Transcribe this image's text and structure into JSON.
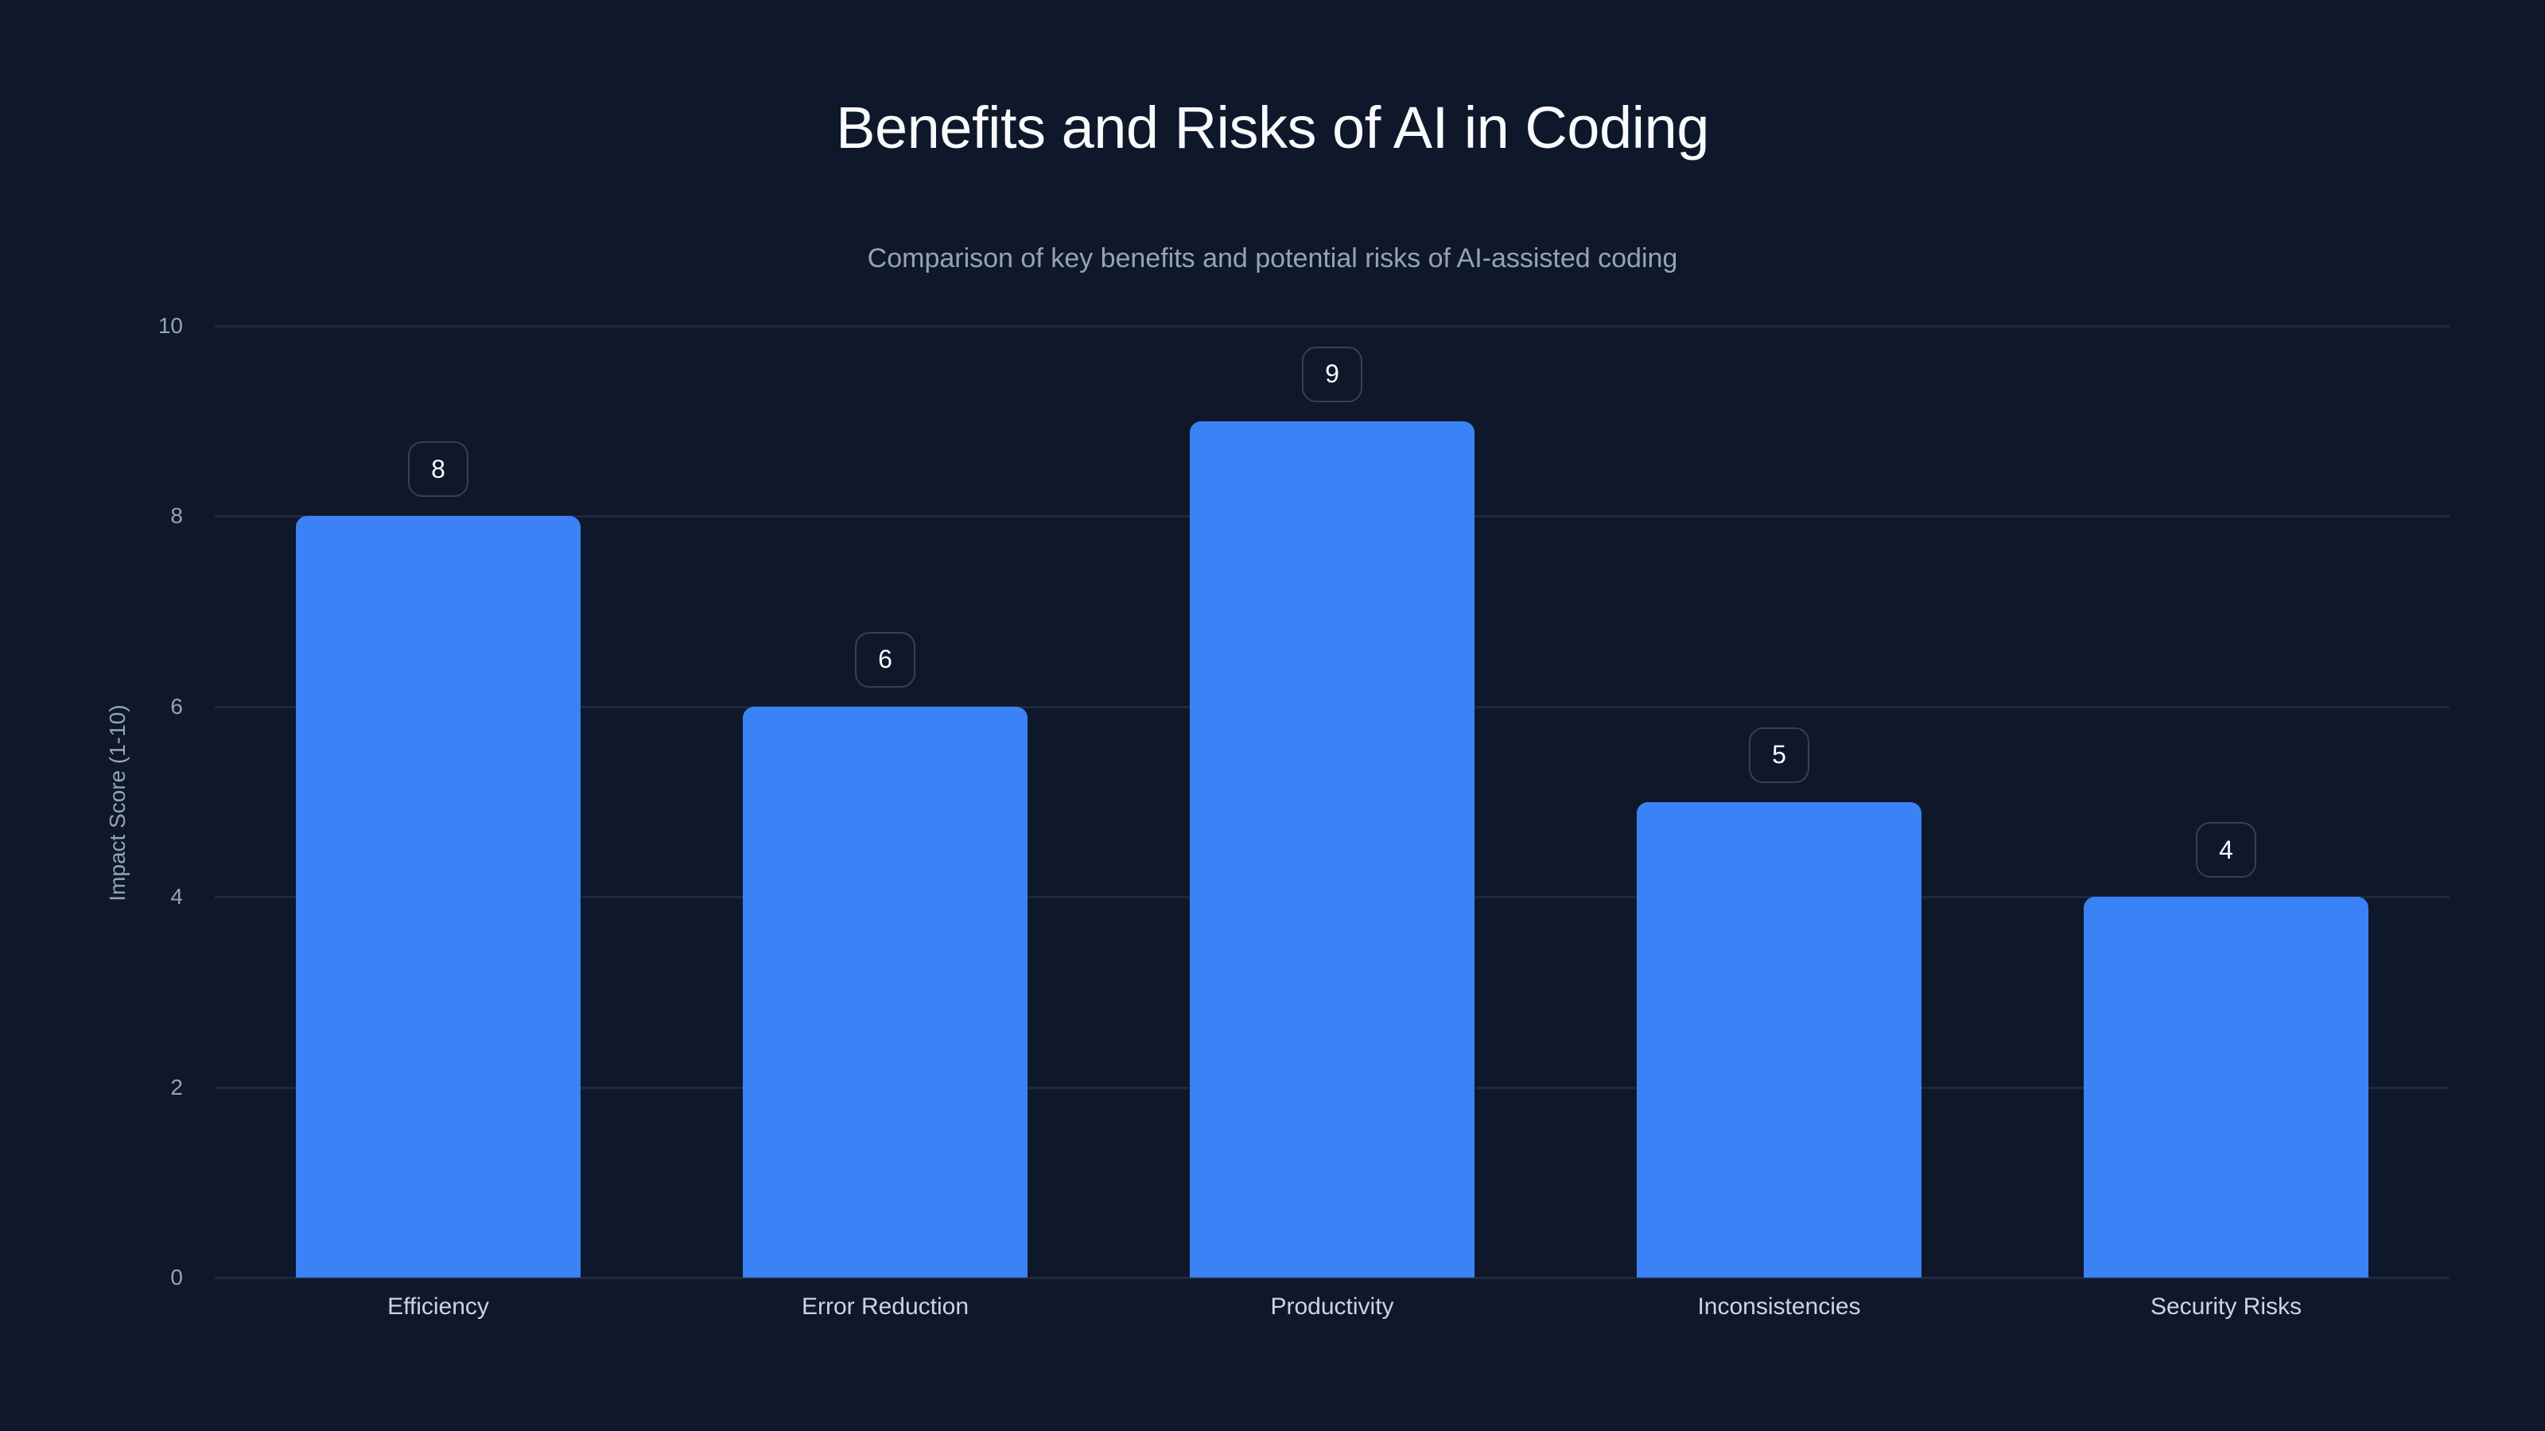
{
  "header": {
    "title": "Benefits and Risks of AI in Coding",
    "subtitle": "Comparison of key benefits and potential risks of AI-assisted coding"
  },
  "colors": {
    "background": "#0f172a",
    "bar": "#3b82f6",
    "grid": "#1e293b",
    "badge_border": "#374151",
    "title": "#f8fafc",
    "muted_text": "#94a3b8"
  },
  "axis": {
    "ylabel": "Impact Score (1-10)",
    "yticks": [
      "0",
      "2",
      "4",
      "6",
      "8",
      "10"
    ]
  },
  "bars": [
    {
      "label": "Efficiency",
      "value": 8,
      "value_label": "8"
    },
    {
      "label": "Error Reduction",
      "value": 6,
      "value_label": "6"
    },
    {
      "label": "Productivity",
      "value": 9,
      "value_label": "9"
    },
    {
      "label": "Inconsistencies",
      "value": 5,
      "value_label": "5"
    },
    {
      "label": "Security Risks",
      "value": 4,
      "value_label": "4"
    }
  ],
  "chart_data": {
    "type": "bar",
    "title": "Benefits and Risks of AI in Coding",
    "subtitle": "Comparison of key benefits and potential risks of AI-assisted coding",
    "categories": [
      "Efficiency",
      "Error Reduction",
      "Productivity",
      "Inconsistencies",
      "Security Risks"
    ],
    "values": [
      8,
      6,
      9,
      5,
      4
    ],
    "xlabel": "",
    "ylabel": "Impact Score (1-10)",
    "ylim": [
      0,
      10
    ],
    "yticks": [
      0,
      2,
      4,
      6,
      8,
      10
    ],
    "grid": true,
    "legend": "none",
    "data_labels": true
  }
}
